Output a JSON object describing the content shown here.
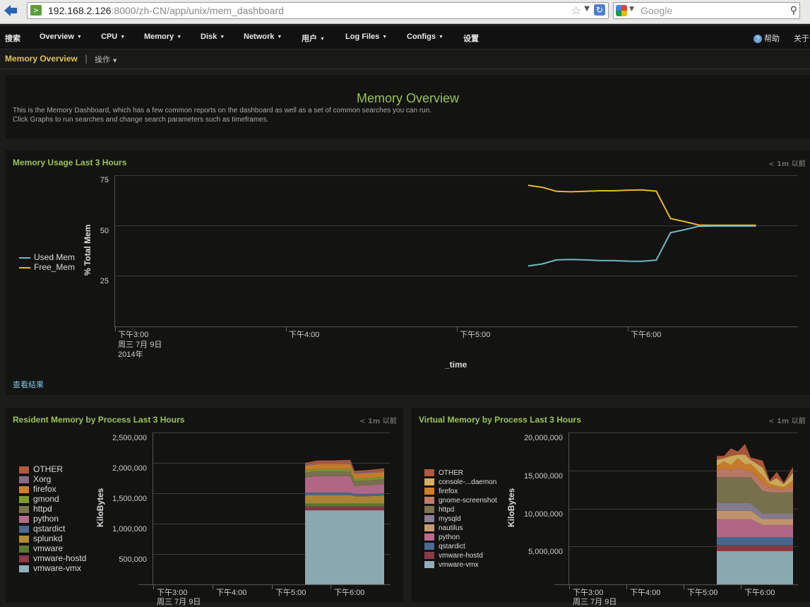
{
  "browser": {
    "url_host": "192.168.2.126",
    "url_rest": ":8000/zh-CN/app/unix/mem_dashboard",
    "search_placeholder": "Google"
  },
  "nav": {
    "items": [
      "搜索",
      "Overview",
      "CPU",
      "Memory",
      "Disk",
      "Network",
      "用户",
      "Log Files",
      "Configs",
      "设置"
    ],
    "help": "帮助",
    "about": "关于"
  },
  "subnav": {
    "title": "Memory Overview",
    "sep": "|",
    "action": "操作"
  },
  "intro": {
    "title": "Memory Overview",
    "line1": "This is the Memory Dashboard, which has a few common reports on the dashboard as well as a set of common searches you can run.",
    "line2": "Click Graphs to run searches and change search parameters such as timeframes."
  },
  "panels": {
    "usage": {
      "title": "Memory Usage Last 3 Hours",
      "time": "< 1m 以前",
      "view_results": "查看結果"
    },
    "resident": {
      "title": "Resident Memory by Process Last 3 Hours",
      "time": "< 1m 以前"
    },
    "virtual": {
      "title": "Virtual Memory by Process Last 3 Hours",
      "time": "< 1m 以前"
    }
  },
  "colors": {
    "used": "#6fb9c4",
    "free": "#e8b72c",
    "accent": "#9bc35a"
  },
  "chart_data": [
    {
      "type": "line",
      "title": "Memory Usage Last 3 Hours",
      "ylabel": "% Total Mem",
      "xlabel": "_time",
      "yticks": [
        "75",
        "50",
        "25"
      ],
      "ylim": [
        0,
        75
      ],
      "xticks": [
        "下午3:00",
        "下午4:00",
        "下午5:00",
        "下午6:00"
      ],
      "xdate": [
        "周三 7月 9日",
        "2014年"
      ],
      "legend": [
        "Used Mem",
        "Free_Mem"
      ],
      "series": [
        {
          "name": "Used Mem",
          "x": [
            "17:25",
            "17:30",
            "17:35",
            "17:40",
            "17:45",
            "17:50",
            "17:55",
            "18:00",
            "18:05",
            "18:10",
            "18:15",
            "18:20",
            "18:25",
            "18:30",
            "18:35",
            "18:40",
            "18:45"
          ],
          "values": [
            30,
            31,
            33,
            33.2,
            33,
            32.7,
            32.7,
            32.4,
            32.3,
            32.9,
            46.5,
            48,
            49.7,
            49.8,
            49.8,
            49.8,
            49.8
          ]
        },
        {
          "name": "Free_Mem",
          "x": [
            "17:25",
            "17:30",
            "17:35",
            "17:40",
            "17:45",
            "17:50",
            "17:55",
            "18:00",
            "18:05",
            "18:10",
            "18:15",
            "18:20",
            "18:25",
            "18:30",
            "18:35",
            "18:40",
            "18:45"
          ],
          "values": [
            70,
            69,
            67,
            66.8,
            67,
            67.3,
            67.3,
            67.6,
            67.7,
            67.1,
            53.5,
            52,
            50.3,
            50.2,
            50.2,
            50.2,
            50.2
          ]
        }
      ]
    },
    {
      "type": "area",
      "title": "Resident Memory by Process Last 3 Hours",
      "ylabel": "KiloBytes",
      "yticks": [
        "2,500,000",
        "2,000,000",
        "1,500,000",
        "1,000,000",
        "500,000"
      ],
      "ylim": [
        0,
        2500000
      ],
      "xticks": [
        "下午3:00",
        "下午4:00",
        "下午5:00",
        "下午6:00"
      ],
      "xdate": "周三 7月 9日",
      "legend": [
        {
          "name": "OTHER",
          "color": "#b05a3c"
        },
        {
          "name": "Xorg",
          "color": "#8a6b88"
        },
        {
          "name": "firefox",
          "color": "#d07f2a"
        },
        {
          "name": "gmond",
          "color": "#7d9a32"
        },
        {
          "name": "httpd",
          "color": "#7c7550"
        },
        {
          "name": "python",
          "color": "#b86c8c"
        },
        {
          "name": "qstardict",
          "color": "#4a6a95"
        },
        {
          "name": "splunkd",
          "color": "#b28a38"
        },
        {
          "name": "vmware",
          "color": "#5c7a30"
        },
        {
          "name": "vmware-hostd",
          "color": "#8a3a48"
        },
        {
          "name": "vmware-vmx",
          "color": "#8fb0b8"
        }
      ]
    },
    {
      "type": "area",
      "title": "Virtual Memory by Process Last 3 Hours",
      "ylabel": "KiloBytes",
      "yticks": [
        "20,000,000",
        "15,000,000",
        "10,000,000",
        "5,000,000"
      ],
      "ylim": [
        0,
        20000000
      ],
      "xticks": [
        "下午3:00",
        "下午4:00",
        "下午5:00",
        "下午6:00"
      ],
      "xdate": "周三 7月 9日",
      "legend": [
        {
          "name": "OTHER",
          "color": "#b05a3c"
        },
        {
          "name": "console-...daemon",
          "color": "#d4b061"
        },
        {
          "name": "firefox",
          "color": "#d07f2a"
        },
        {
          "name": "gnome-screenshot",
          "color": "#c07c6c"
        },
        {
          "name": "httpd",
          "color": "#7c7550"
        },
        {
          "name": "mysqld",
          "color": "#8a8095"
        },
        {
          "name": "nautilus",
          "color": "#c89a72"
        },
        {
          "name": "python",
          "color": "#b86c8c"
        },
        {
          "name": "qstardict",
          "color": "#4a6a95"
        },
        {
          "name": "vmware-hostd",
          "color": "#8a3a48"
        },
        {
          "name": "vmware-vmx",
          "color": "#8fb0b8"
        }
      ]
    }
  ]
}
